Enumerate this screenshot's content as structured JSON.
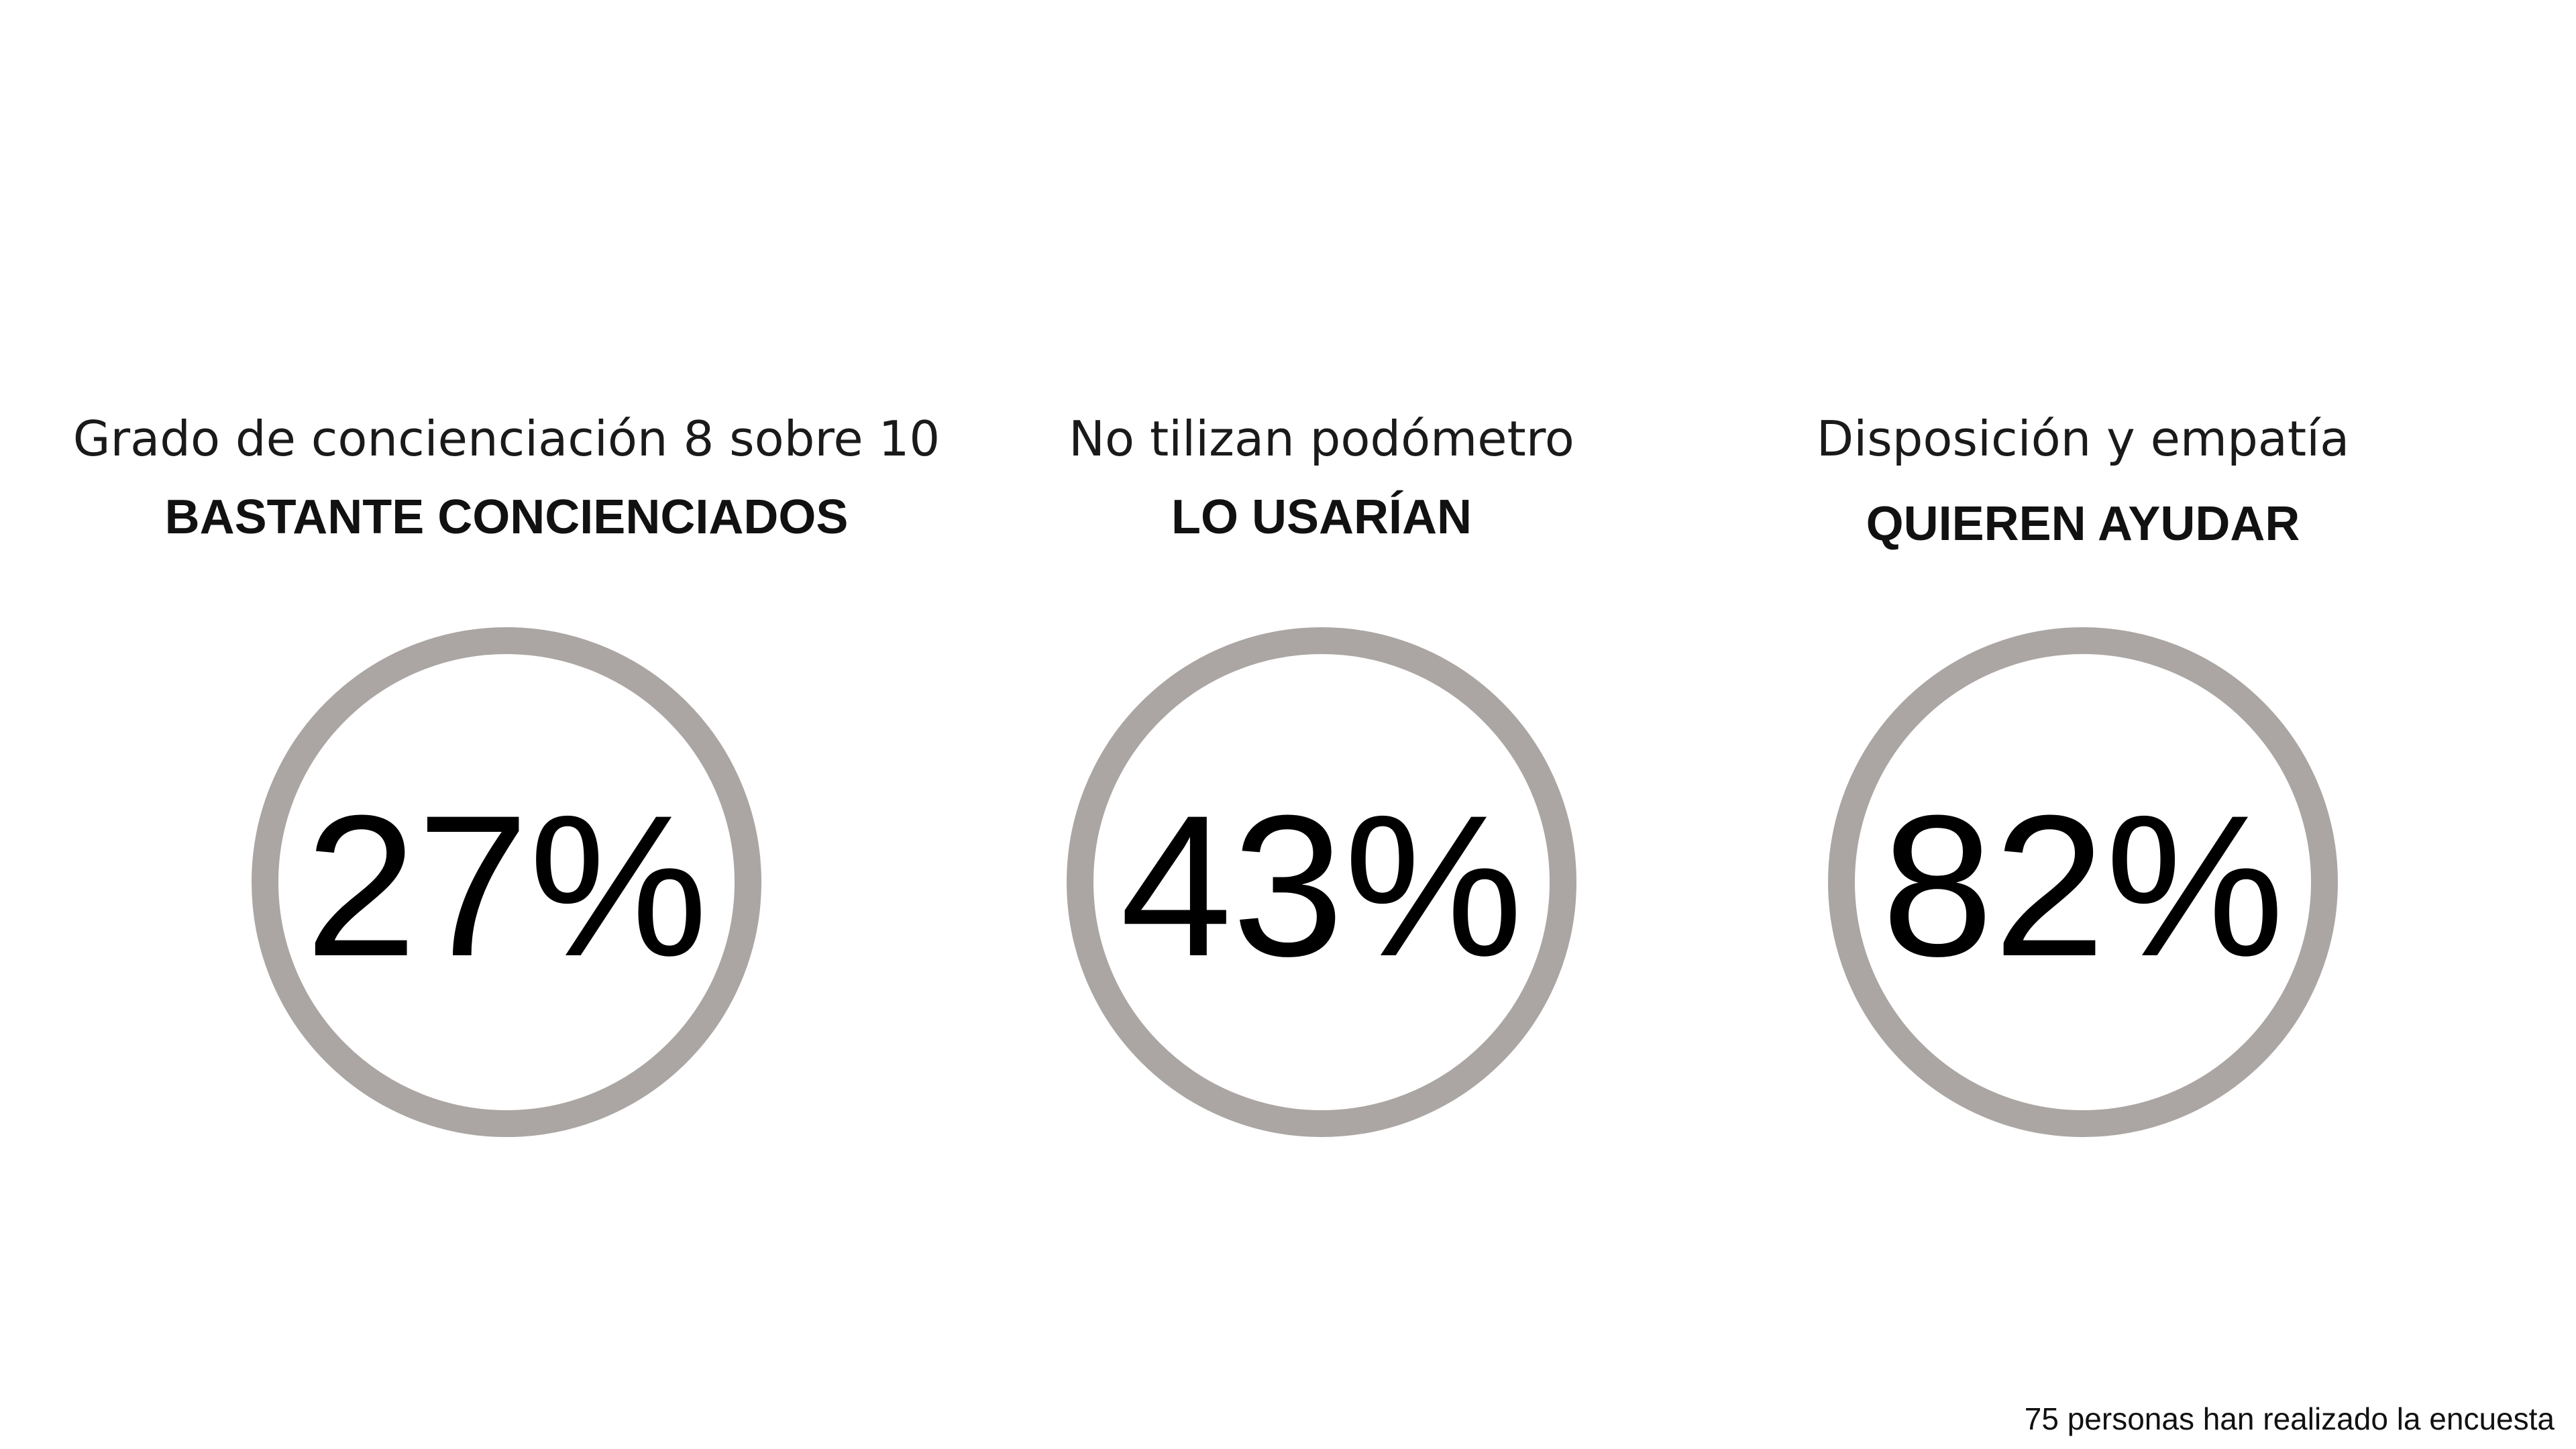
{
  "stats": [
    {
      "heading": "Grado de concienciación 8 sobre 10",
      "subheading": "BASTANTE CONCIENCIADOS",
      "percent": "27%",
      "value": 27
    },
    {
      "heading": "No tilizan podómetro",
      "subheading": "LO USARÍAN",
      "percent": "43%",
      "value": 43
    },
    {
      "heading": "Disposición y empatía",
      "subheading": "QUIEREN AYUDAR",
      "percent": "82%",
      "value": 82
    }
  ],
  "footnote": "75 personas han realizado la encuesta",
  "colors": {
    "ring": "#aba6a3",
    "text": "#000000",
    "background": "#ffffff"
  }
}
